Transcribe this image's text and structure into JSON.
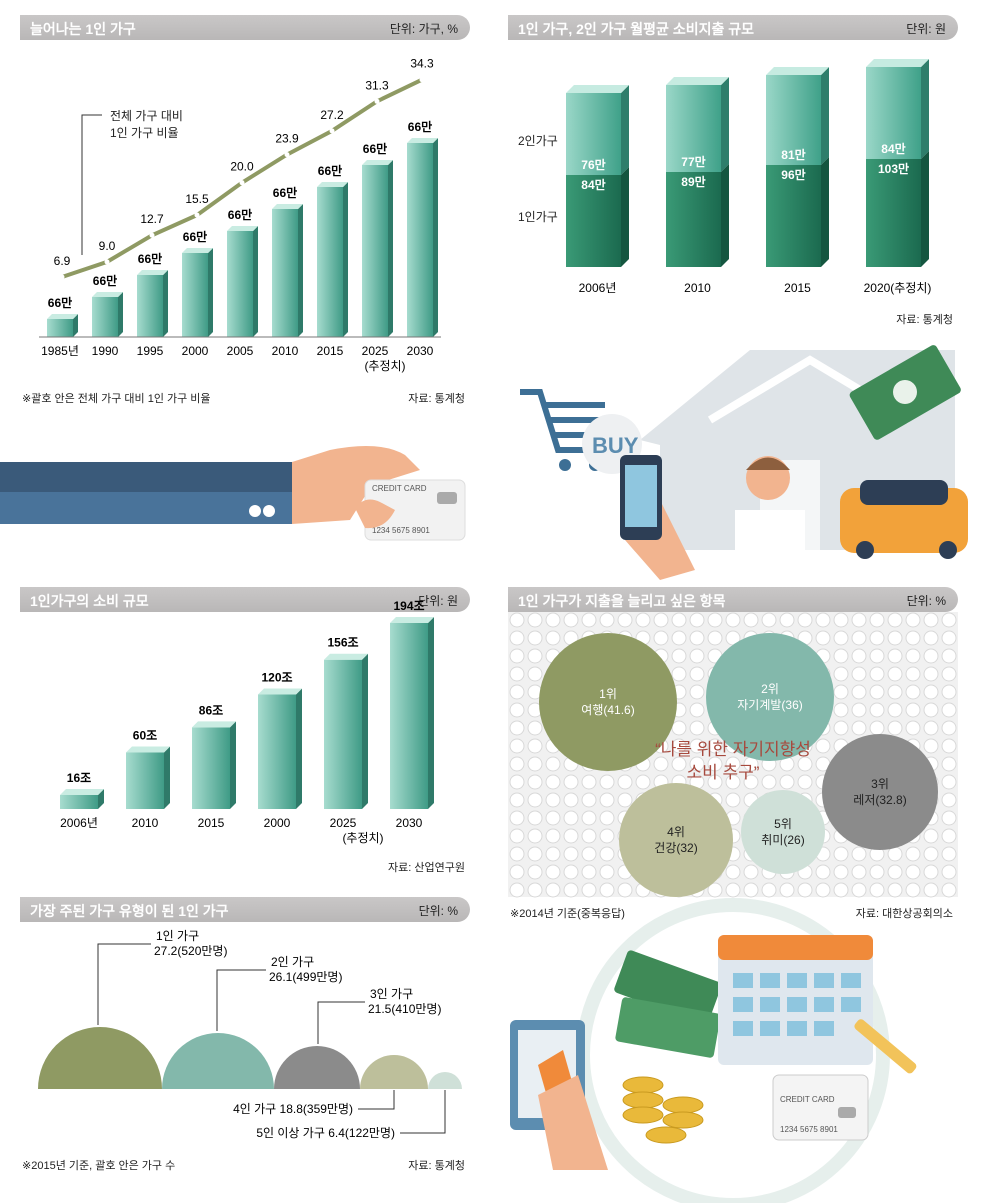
{
  "panel1": {
    "title": "늘어나는 1인 가구",
    "unit": "단위: 가구, %",
    "legend_line1": "전체 가구 대비",
    "legend_line2": "1인 가구 비율",
    "footnote": "※괄호 안은 전체 가구 대비 1인 가구 비율",
    "source": "자료: 통계청",
    "chart_data": {
      "type": "bar",
      "title": "늘어나는 1인 가구",
      "categories": [
        "1985년",
        "1990",
        "1995",
        "2000",
        "2005",
        "2010",
        "2015",
        "2025",
        "2030"
      ],
      "category_note": "(추정치)",
      "bar_labels": [
        "66만",
        "66만",
        "66만",
        "66만",
        "66만",
        "66만",
        "66만",
        "66만",
        "66만"
      ],
      "line_series": {
        "name": "전체 가구 대비 1인 가구 비율",
        "values": [
          6.9,
          9.0,
          12.7,
          15.5,
          20.0,
          23.9,
          27.2,
          31.3,
          34.3
        ]
      }
    }
  },
  "panel2": {
    "title": "1인 가구, 2인 가구 월평균 소비지출 규모",
    "unit": "단위: 원",
    "row_label_2": "2인가구",
    "row_label_1": "1인가구",
    "source": "자료: 통계청",
    "chart_data": {
      "type": "bar",
      "categories": [
        "2006년",
        "2010",
        "2015",
        "2020(추정치)"
      ],
      "series": [
        {
          "name": "2인가구",
          "labels": [
            "76만",
            "77만",
            "81만",
            "84만"
          ]
        },
        {
          "name": "1인가구",
          "labels": [
            "84만",
            "89만",
            "96만",
            "103만"
          ]
        }
      ]
    }
  },
  "panel3": {
    "title": "1인가구의 소비 규모",
    "unit": "단위: 원",
    "source": "자료: 산업연구원",
    "chart_data": {
      "type": "bar",
      "categories": [
        "2006년",
        "2010",
        "2015",
        "2000",
        "2025",
        "2030"
      ],
      "category_note": "(추정치)",
      "values": [
        16,
        60,
        86,
        120,
        156,
        194
      ],
      "labels": [
        "16조",
        "60조",
        "86조",
        "120조",
        "156조",
        "194조"
      ],
      "ylim": [
        0,
        200
      ]
    }
  },
  "panel4": {
    "title": "1인 가구가 지출을 늘리고 싶은 항목",
    "unit": "단위: %",
    "quote_line1": "“나를 위한 자기지향성",
    "quote_line2": "소비 추구”",
    "footnote": "※2014년 기준(중복응답)",
    "source": "자료: 대한상공회의소",
    "colors": {
      "c1": "#8f9a63",
      "c2": "#83b8ab",
      "c3": "#8b8b8b",
      "c4": "#bdbf9b",
      "c5": "#cfe0d8"
    },
    "chart_data": {
      "type": "bubble",
      "items": [
        {
          "rank": "1위",
          "label": "여행(41.6)",
          "value": 41.6
        },
        {
          "rank": "2위",
          "label": "자기계발(36)",
          "value": 36
        },
        {
          "rank": "3위",
          "label": "레저(32.8)",
          "value": 32.8
        },
        {
          "rank": "4위",
          "label": "건강(32)",
          "value": 32
        },
        {
          "rank": "5위",
          "label": "취미(26)",
          "value": 26
        }
      ]
    }
  },
  "panel5": {
    "title": "가장 주된 가구 유형이 된 1인 가구",
    "unit": "단위: %",
    "footnote": "※2015년 기준, 괄호 안은 가구 수",
    "source": "자료: 통계청",
    "chart_data": {
      "type": "semicircle",
      "items": [
        {
          "name": "1인 가구",
          "value_text": "27.2(520만명)",
          "value": 27.2
        },
        {
          "name": "2인 가구",
          "value_text": "26.1(499만명)",
          "value": 26.1
        },
        {
          "name": "3인 가구",
          "value_text": "21.5(410만명)",
          "value": 21.5
        },
        {
          "name": "4인 가구",
          "value_text": "18.8(359만명)",
          "value": 18.8
        },
        {
          "name": "5인 이상 가구",
          "value_text": "6.4(122만명)",
          "value": 6.4
        }
      ]
    }
  },
  "illustrations": {
    "card_text": "CREDIT CARD",
    "card_number": "1234 5675 8901",
    "buy_label": "BUY"
  }
}
